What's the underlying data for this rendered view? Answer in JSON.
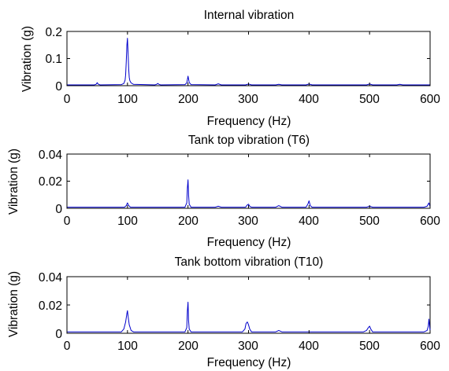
{
  "chart_data": [
    {
      "type": "line",
      "title": "Internal vibration",
      "xlabel": "Frequency (Hz)",
      "ylabel": "Vibration (g)",
      "xlim": [
        0,
        600
      ],
      "ylim": [
        0,
        0.2
      ],
      "xticks": [
        "0",
        "100",
        "200",
        "300",
        "400",
        "500",
        "600"
      ],
      "yticks": [
        "0",
        "0.1",
        "0.2"
      ],
      "grid": false,
      "series": [
        {
          "color": "#0000cc",
          "x": [
            0,
            45,
            48,
            50,
            52,
            55,
            90,
            94,
            96,
            97,
            98,
            99,
            100,
            101,
            102,
            103,
            104,
            106,
            110,
            145,
            148,
            150,
            152,
            155,
            195,
            198,
            200,
            202,
            205,
            245,
            250,
            255,
            295,
            300,
            305,
            345,
            350,
            355,
            395,
            400,
            405,
            495,
            500,
            505,
            545,
            550,
            555,
            600
          ],
          "y": [
            0.003,
            0.003,
            0.005,
            0.011,
            0.005,
            0.003,
            0.004,
            0.008,
            0.02,
            0.04,
            0.09,
            0.15,
            0.175,
            0.12,
            0.06,
            0.03,
            0.018,
            0.01,
            0.005,
            0.003,
            0.005,
            0.008,
            0.005,
            0.003,
            0.004,
            0.01,
            0.035,
            0.012,
            0.004,
            0.003,
            0.007,
            0.003,
            0.003,
            0.006,
            0.003,
            0.003,
            0.005,
            0.003,
            0.003,
            0.006,
            0.003,
            0.003,
            0.006,
            0.003,
            0.003,
            0.005,
            0.003,
            0.003
          ]
        }
      ]
    },
    {
      "type": "line",
      "title": "Tank top vibration (T6)",
      "xlabel": "Frequency (Hz)",
      "ylabel": "Vibration (g)",
      "xlim": [
        0,
        600
      ],
      "ylim": [
        0,
        0.04
      ],
      "xticks": [
        "0",
        "100",
        "200",
        "300",
        "400",
        "500",
        "600"
      ],
      "yticks": [
        "0",
        "0.02",
        "0.04"
      ],
      "grid": false,
      "series": [
        {
          "color": "#0000cc",
          "x": [
            0,
            95,
            98,
            100,
            102,
            105,
            195,
            198,
            199,
            200,
            201,
            202,
            205,
            245,
            250,
            255,
            295,
            298,
            300,
            302,
            305,
            345,
            350,
            355,
            395,
            398,
            400,
            402,
            405,
            495,
            500,
            505,
            590,
            595,
            598,
            600
          ],
          "y": [
            0.0008,
            0.0008,
            0.002,
            0.004,
            0.002,
            0.0008,
            0.0008,
            0.004,
            0.015,
            0.021,
            0.01,
            0.003,
            0.0008,
            0.0008,
            0.0015,
            0.0008,
            0.0008,
            0.0025,
            0.003,
            0.0015,
            0.0008,
            0.0008,
            0.002,
            0.0008,
            0.0008,
            0.003,
            0.0055,
            0.002,
            0.0008,
            0.0008,
            0.0015,
            0.0008,
            0.0008,
            0.0015,
            0.004,
            0.0012
          ]
        }
      ]
    },
    {
      "type": "line",
      "title": "Tank bottom vibration (T10)",
      "xlabel": "Frequency (Hz)",
      "ylabel": "Vibration (g)",
      "xlim": [
        0,
        600
      ],
      "ylim": [
        0,
        0.04
      ],
      "xticks": [
        "0",
        "100",
        "200",
        "300",
        "400",
        "500",
        "600"
      ],
      "yticks": [
        "0",
        "0.02",
        "0.04"
      ],
      "grid": false,
      "series": [
        {
          "color": "#0000cc",
          "x": [
            0,
            90,
            94,
            97,
            99,
            100,
            101,
            103,
            106,
            110,
            195,
            198,
            199,
            200,
            201,
            202,
            205,
            290,
            294,
            296,
            298,
            300,
            302,
            305,
            345,
            350,
            355,
            490,
            495,
            498,
            500,
            502,
            505,
            590,
            595,
            597,
            598,
            599,
            600
          ],
          "y": [
            0.001,
            0.001,
            0.003,
            0.008,
            0.014,
            0.016,
            0.012,
            0.006,
            0.002,
            0.001,
            0.001,
            0.004,
            0.016,
            0.022,
            0.009,
            0.003,
            0.001,
            0.001,
            0.003,
            0.007,
            0.008,
            0.006,
            0.003,
            0.001,
            0.001,
            0.002,
            0.001,
            0.001,
            0.002,
            0.004,
            0.005,
            0.003,
            0.001,
            0.001,
            0.002,
            0.005,
            0.01,
            0.006,
            0.002
          ]
        }
      ]
    }
  ]
}
